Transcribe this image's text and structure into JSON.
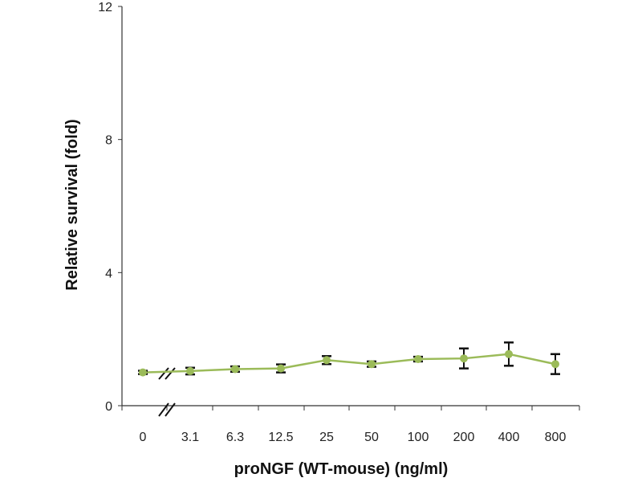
{
  "chart_data": {
    "type": "line",
    "title": "",
    "xlabel": "proNGF (WT-mouse) (ng/ml)",
    "ylabel": "Relative survival (fold)",
    "categories": [
      "0",
      "3.1",
      "6.3",
      "12.5",
      "25",
      "50",
      "100",
      "200",
      "400",
      "800"
    ],
    "series": [
      {
        "name": "proNGF (WT-mouse)",
        "values": [
          1.0,
          1.04,
          1.1,
          1.12,
          1.37,
          1.25,
          1.4,
          1.42,
          1.55,
          1.25
        ],
        "errors": [
          0.05,
          0.1,
          0.08,
          0.12,
          0.12,
          0.08,
          0.07,
          0.3,
          0.35,
          0.3
        ]
      }
    ],
    "ylim": [
      0,
      12
    ],
    "yticks": [
      "0",
      "4",
      "8",
      "12"
    ],
    "grid": false,
    "axis_break": "between 0 and 3.1",
    "colors": {
      "line": "#9bbb59",
      "marker": "#9bbb59",
      "error": "#111111"
    }
  }
}
